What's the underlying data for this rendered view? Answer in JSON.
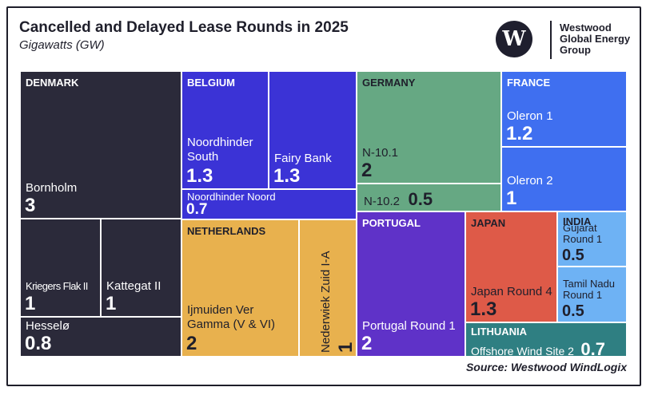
{
  "header": {
    "title": "Cancelled and Delayed Lease Rounds in 2025",
    "subtitle": "Gigawatts (GW)"
  },
  "logo": {
    "mark": "W",
    "line1": "Westwood",
    "line2": "Global Energy",
    "line3": "Group"
  },
  "source": "Source: Westwood WindLogix",
  "colors": {
    "denmark": "#2b2a3a",
    "belgium": "#3b33d6",
    "netherlands": "#e8b14e",
    "germany": "#66a883",
    "france": "#3f6ff0",
    "portugal": "#5f32c8",
    "japan": "#de5a48",
    "india": "#6eb2f4",
    "lithuania": "#2f7f82"
  },
  "chart_data": {
    "type": "treemap",
    "title": "Cancelled and Delayed Lease Rounds in 2025",
    "subtitle": "Gigawatts (GW)",
    "unit": "GW",
    "groups": [
      {
        "country": "DENMARK",
        "items": [
          {
            "name": "Bornholm",
            "value": 3,
            "display": "3"
          },
          {
            "name": "Kriegers Flak II",
            "value": 1,
            "display": "1"
          },
          {
            "name": "Kattegat II",
            "value": 1,
            "display": "1"
          },
          {
            "name": "Hesselø",
            "value": 0.8,
            "display": "0.8"
          }
        ]
      },
      {
        "country": "BELGIUM",
        "items": [
          {
            "name": "Noordhinder South",
            "value": 1.3,
            "display": "1.3"
          },
          {
            "name": "Fairy Bank",
            "value": 1.3,
            "display": "1.3"
          },
          {
            "name": "Noordhinder Noord",
            "value": 0.7,
            "display": "0.7"
          }
        ]
      },
      {
        "country": "NETHERLANDS",
        "items": [
          {
            "name": "Ijmuiden Ver Gamma (V & VI)",
            "value": 2,
            "display": "2"
          },
          {
            "name": "Nederwiek Zuid I-A",
            "value": 1,
            "display": "1"
          }
        ]
      },
      {
        "country": "GERMANY",
        "items": [
          {
            "name": "N-10.1",
            "value": 2,
            "display": "2"
          },
          {
            "name": "N-10.2",
            "value": 0.5,
            "display": "0.5"
          }
        ]
      },
      {
        "country": "FRANCE",
        "items": [
          {
            "name": "Oleron 1",
            "value": 1.2,
            "display": "1.2"
          },
          {
            "name": "Oleron 2",
            "value": 1,
            "display": "1"
          }
        ]
      },
      {
        "country": "PORTUGAL",
        "items": [
          {
            "name": "Portugal Round 1",
            "value": 2,
            "display": "2"
          }
        ]
      },
      {
        "country": "JAPAN",
        "items": [
          {
            "name": "Japan Round 4",
            "value": 1.3,
            "display": "1.3"
          }
        ]
      },
      {
        "country": "INDIA",
        "items": [
          {
            "name": "Gujarat Round 1",
            "value": 0.5,
            "display": "0.5"
          },
          {
            "name": "Tamil Nadu Round 1",
            "value": 0.5,
            "display": "0.5"
          }
        ]
      },
      {
        "country": "LITHUANIA",
        "items": [
          {
            "name": "Offshore Wind Site 2",
            "value": 0.7,
            "display": "0.7"
          }
        ]
      }
    ]
  }
}
